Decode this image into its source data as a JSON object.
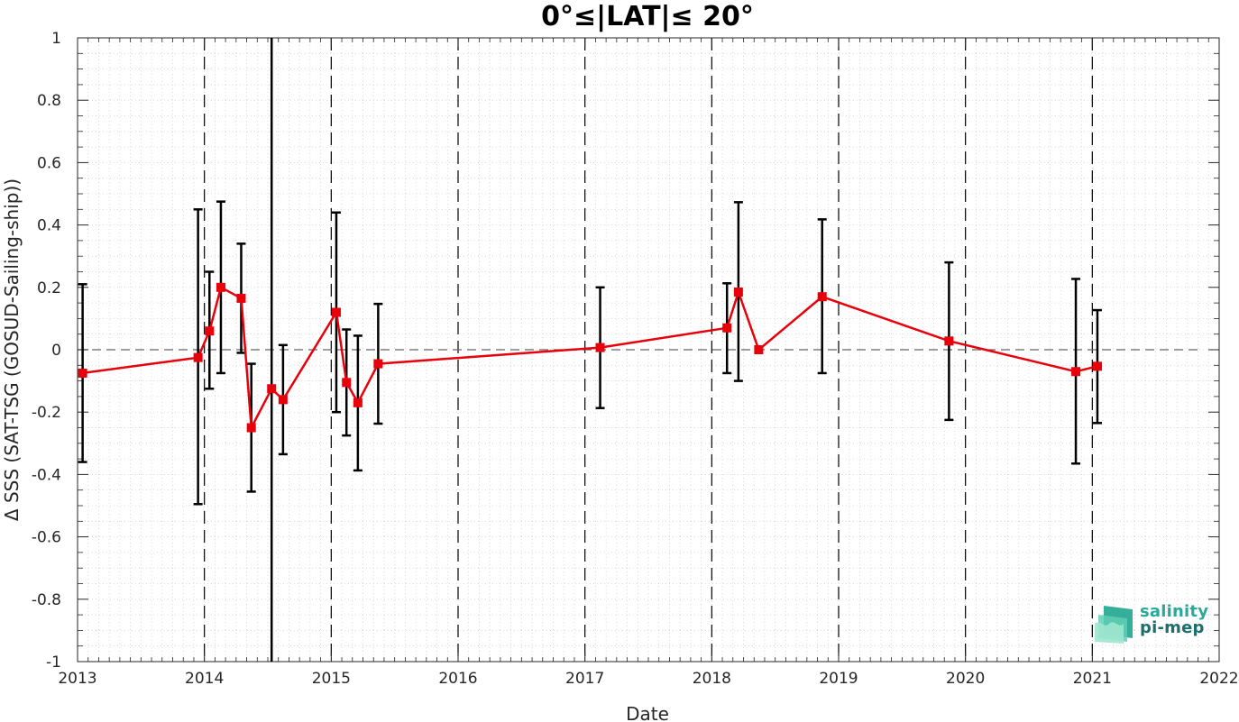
{
  "chart_data": {
    "type": "line",
    "title": "0°≤|LAT|≤ 20°",
    "xlabel": "Date",
    "ylabel": "Δ SSS (SAT-TSG (GOSUD-Sailing-ship))",
    "xlim": [
      2013.0,
      2022.0
    ],
    "ylim": [
      -1,
      1
    ],
    "x_ticks": [
      "2013",
      "2014",
      "2015",
      "2016",
      "2017",
      "2018",
      "2019",
      "2020",
      "2021",
      "2022"
    ],
    "y_ticks": [
      "1",
      "0.8",
      "0.6",
      "0.4",
      "0.2",
      "0",
      "-0.2",
      "-0.4",
      "-0.6",
      "-0.8",
      "-1"
    ],
    "grid": true,
    "zero_line": true,
    "year_boundaries_dashed": [
      2014,
      2015,
      2016,
      2017,
      2018,
      2019,
      2020,
      2021
    ],
    "line_color": "#e8000b",
    "errorbar_color": "#000000",
    "series": [
      {
        "x": [
          2013.04,
          2013.95,
          2014.04,
          2014.13,
          2014.29,
          2014.37,
          2014.53,
          2014.62,
          2015.04,
          2015.12,
          2015.21,
          2015.37,
          2017.12,
          2018.12,
          2018.21,
          2018.37,
          2018.87,
          2019.87,
          2020.87,
          2021.04
        ],
        "values": [
          -0.075,
          -0.025,
          0.06,
          0.2,
          0.165,
          -0.25,
          -0.125,
          -0.16,
          0.12,
          -0.105,
          -0.17,
          -0.045,
          0.007,
          0.07,
          0.185,
          0.0,
          0.17,
          0.028,
          -0.07,
          -0.053
        ],
        "err_upper": [
          0.21,
          0.45,
          0.25,
          0.475,
          0.34,
          -0.045,
          1.0,
          0.015,
          0.44,
          0.065,
          0.045,
          0.147,
          0.2,
          0.213,
          0.473,
          0.0,
          0.418,
          0.28,
          0.227,
          0.127
        ],
        "err_lower": [
          -0.36,
          -0.495,
          -0.125,
          -0.075,
          -0.01,
          -0.455,
          -1.0,
          -0.335,
          -0.2,
          -0.275,
          -0.387,
          -0.237,
          -0.187,
          -0.075,
          -0.1,
          0.0,
          -0.075,
          -0.225,
          -0.365,
          -0.235
        ]
      }
    ]
  },
  "logo": {
    "line1": "salinity",
    "line2": "pi-mep",
    "color1": "#2aa89a",
    "color2": "#1c6f6a"
  }
}
